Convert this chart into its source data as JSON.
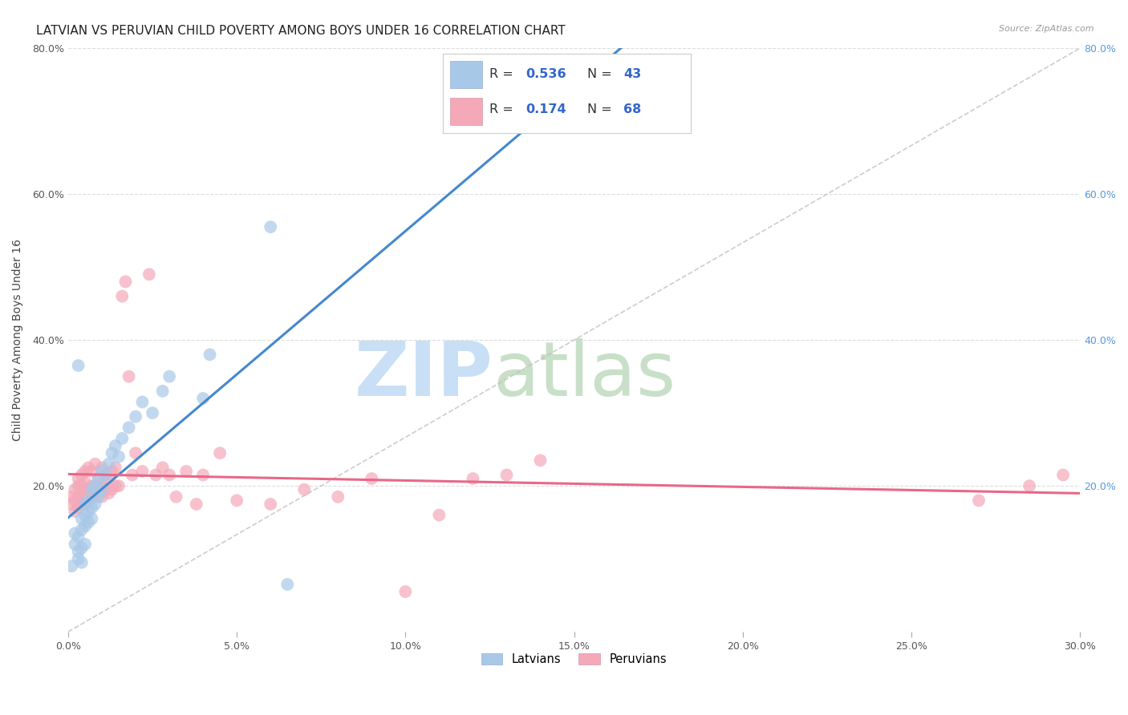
{
  "title": "LATVIAN VS PERUVIAN CHILD POVERTY AMONG BOYS UNDER 16 CORRELATION CHART",
  "source": "Source: ZipAtlas.com",
  "ylabel": "Child Poverty Among Boys Under 16",
  "xlim": [
    0.0,
    0.3
  ],
  "ylim": [
    0.0,
    0.8
  ],
  "xticks": [
    0.0,
    0.05,
    0.1,
    0.15,
    0.2,
    0.25,
    0.3
  ],
  "yticks": [
    0.0,
    0.2,
    0.4,
    0.6,
    0.8
  ],
  "xticklabels": [
    "0.0%",
    "5.0%",
    "10.0%",
    "15.0%",
    "20.0%",
    "25.0%",
    "30.0%"
  ],
  "yticklabels_left": [
    "",
    "20.0%",
    "40.0%",
    "60.0%",
    "80.0%"
  ],
  "yticklabels_right": [
    "",
    "20.0%",
    "40.0%",
    "60.0%",
    "80.0%"
  ],
  "latvian_color": "#a8c8e8",
  "peruvian_color": "#f4a8b8",
  "latvian_line_color": "#4488cc",
  "peruvian_line_color": "#e86888",
  "diagonal_color": "#c0c0c0",
  "R_latvian": 0.536,
  "N_latvian": 43,
  "R_peruvian": 0.174,
  "N_peruvian": 68,
  "watermark_zip": "ZIP",
  "watermark_atlas": "atlas",
  "watermark_color_zip": "#c8dff0",
  "watermark_color_atlas": "#d8e8c0",
  "title_fontsize": 11,
  "axis_label_fontsize": 10,
  "tick_fontsize": 9,
  "latvian_x": [
    0.001,
    0.002,
    0.002,
    0.003,
    0.003,
    0.003,
    0.004,
    0.004,
    0.004,
    0.004,
    0.005,
    0.005,
    0.005,
    0.005,
    0.006,
    0.006,
    0.006,
    0.007,
    0.007,
    0.007,
    0.008,
    0.008,
    0.009,
    0.009,
    0.01,
    0.01,
    0.011,
    0.012,
    0.013,
    0.014,
    0.015,
    0.016,
    0.018,
    0.02,
    0.022,
    0.025,
    0.028,
    0.03,
    0.04,
    0.042,
    0.06,
    0.065,
    0.003
  ],
  "latvian_y": [
    0.09,
    0.12,
    0.135,
    0.1,
    0.11,
    0.13,
    0.095,
    0.115,
    0.14,
    0.155,
    0.12,
    0.145,
    0.16,
    0.175,
    0.15,
    0.165,
    0.18,
    0.155,
    0.17,
    0.195,
    0.175,
    0.2,
    0.185,
    0.21,
    0.195,
    0.22,
    0.215,
    0.23,
    0.245,
    0.255,
    0.24,
    0.265,
    0.28,
    0.295,
    0.315,
    0.3,
    0.33,
    0.35,
    0.32,
    0.38,
    0.555,
    0.065,
    0.365
  ],
  "peruvian_x": [
    0.001,
    0.001,
    0.002,
    0.002,
    0.002,
    0.003,
    0.003,
    0.003,
    0.003,
    0.004,
    0.004,
    0.004,
    0.004,
    0.005,
    0.005,
    0.005,
    0.005,
    0.006,
    0.006,
    0.006,
    0.007,
    0.007,
    0.007,
    0.008,
    0.008,
    0.008,
    0.009,
    0.009,
    0.01,
    0.01,
    0.01,
    0.011,
    0.011,
    0.012,
    0.012,
    0.013,
    0.013,
    0.014,
    0.014,
    0.015,
    0.016,
    0.017,
    0.018,
    0.019,
    0.02,
    0.022,
    0.024,
    0.026,
    0.028,
    0.03,
    0.032,
    0.035,
    0.038,
    0.04,
    0.045,
    0.05,
    0.06,
    0.07,
    0.08,
    0.09,
    0.1,
    0.11,
    0.12,
    0.13,
    0.14,
    0.27,
    0.285,
    0.295
  ],
  "peruvian_y": [
    0.175,
    0.185,
    0.165,
    0.18,
    0.195,
    0.17,
    0.185,
    0.2,
    0.21,
    0.175,
    0.185,
    0.2,
    0.215,
    0.175,
    0.19,
    0.205,
    0.22,
    0.18,
    0.195,
    0.225,
    0.185,
    0.2,
    0.22,
    0.185,
    0.2,
    0.23,
    0.19,
    0.21,
    0.185,
    0.2,
    0.225,
    0.195,
    0.215,
    0.19,
    0.21,
    0.195,
    0.22,
    0.2,
    0.225,
    0.2,
    0.46,
    0.48,
    0.35,
    0.215,
    0.245,
    0.22,
    0.49,
    0.215,
    0.225,
    0.215,
    0.185,
    0.22,
    0.175,
    0.215,
    0.245,
    0.18,
    0.175,
    0.195,
    0.185,
    0.21,
    0.055,
    0.16,
    0.21,
    0.215,
    0.235,
    0.18,
    0.2,
    0.215
  ]
}
